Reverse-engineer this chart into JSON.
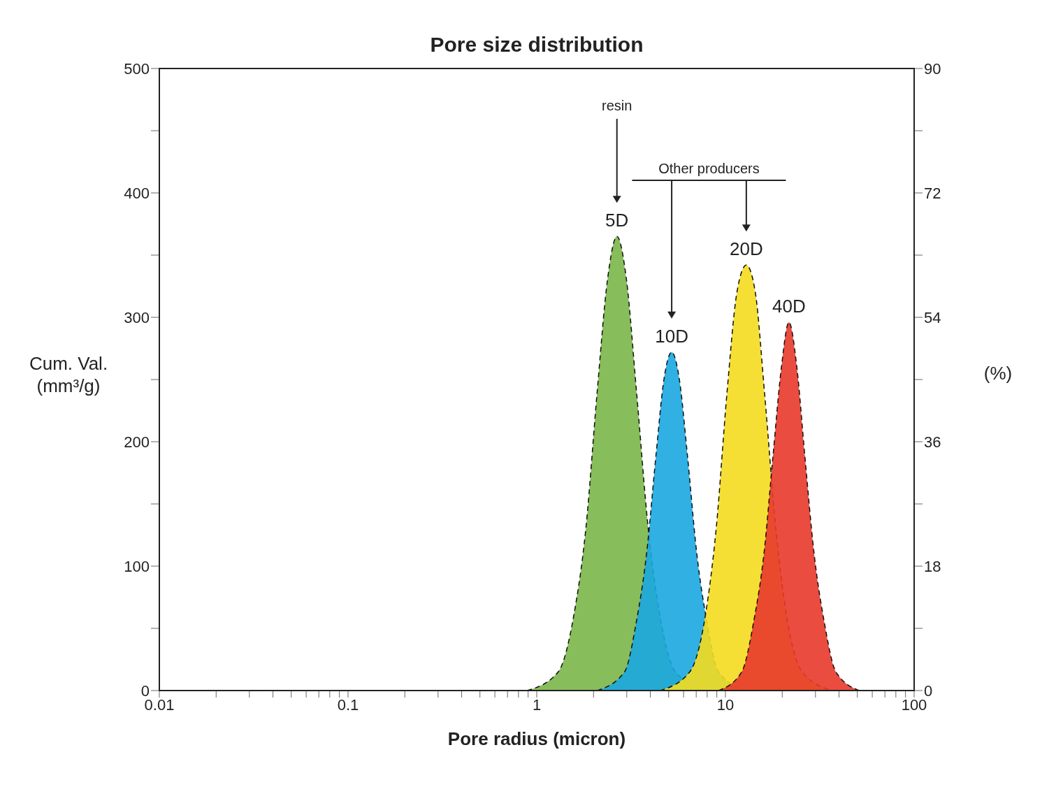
{
  "chart_data": {
    "type": "area",
    "title": "Pore size distribution",
    "xlabel": "Pore radius (micron)",
    "ylabel": "Cum. Val. (mm³/g)",
    "y2label": "(%)",
    "log": "x",
    "line_style": "dashed",
    "xlim": [
      0.01,
      100
    ],
    "xticks": [
      0.01,
      {
        "value": 0.02,
        "label": null
      },
      {
        "value": 0.03,
        "label": null
      },
      {
        "value": 0.04,
        "label": null
      },
      {
        "value": 0.05,
        "label": null
      },
      {
        "value": 0.06,
        "label": null
      },
      {
        "value": 0.07,
        "label": null
      },
      {
        "value": 0.08,
        "label": null
      },
      {
        "value": 0.09,
        "label": null
      },
      0.1,
      {
        "value": 0.2,
        "label": null
      },
      {
        "value": 0.3,
        "label": null
      },
      {
        "value": 0.4,
        "label": null
      },
      {
        "value": 0.5,
        "label": null
      },
      {
        "value": 0.6,
        "label": null
      },
      {
        "value": 0.7,
        "label": null
      },
      {
        "value": 0.8,
        "label": null
      },
      {
        "value": 0.9,
        "label": null
      },
      1,
      {
        "value": 2,
        "label": null
      },
      {
        "value": 3,
        "label": null
      },
      {
        "value": 4,
        "label": null
      },
      {
        "value": 5,
        "label": null
      },
      {
        "value": 6,
        "label": null
      },
      {
        "value": 7,
        "label": null
      },
      {
        "value": 8,
        "label": null
      },
      {
        "value": 9,
        "label": null
      },
      10,
      {
        "value": 20,
        "label": null
      },
      {
        "value": 30,
        "label": null
      },
      {
        "value": 40,
        "label": null
      },
      {
        "value": 50,
        "label": null
      },
      {
        "value": 60,
        "label": null
      },
      {
        "value": 70,
        "label": null
      },
      {
        "value": 80,
        "label": null
      },
      {
        "value": 90,
        "label": null
      },
      100
    ],
    "ylim": [
      0,
      500
    ],
    "yticks": [
      0,
      {
        "value": 50,
        "label": null
      },
      100,
      {
        "value": 150,
        "label": null
      },
      200,
      {
        "value": 250,
        "label": null
      },
      300,
      {
        "value": 350,
        "label": null
      },
      400,
      {
        "value": 450,
        "label": null
      },
      500
    ],
    "y2lim": [
      0,
      90
    ],
    "y2ticks": [
      0,
      {
        "value": 9,
        "label": null
      },
      18,
      {
        "value": 27,
        "label": null
      },
      36,
      {
        "value": 45,
        "label": null
      },
      54,
      {
        "value": 63,
        "label": null
      },
      72,
      {
        "value": 81,
        "label": null
      },
      90
    ],
    "series": [
      {
        "name": "5D",
        "color": "#7ab648",
        "x": [
          0.89,
          1.3,
          1.57,
          1.82,
          2.09,
          2.37,
          2.66,
          2.99,
          3.38,
          3.9,
          4.5,
          5.44,
          7.98
        ],
        "values": [
          0,
          15,
          60,
          130,
          240,
          330,
          365,
          330,
          240,
          130,
          60,
          15,
          0
        ]
      },
      {
        "name": "10D",
        "color": "#1aa7e0",
        "x": [
          2.09,
          2.92,
          3.37,
          3.82,
          4.29,
          4.72,
          5.19,
          5.7,
          6.28,
          7.05,
          7.98,
          9.2,
          12.9
        ],
        "values": [
          0,
          15,
          55,
          110,
          190,
          250,
          272,
          250,
          190,
          110,
          55,
          15,
          0
        ]
      },
      {
        "name": "20D",
        "color": "#f5dc1e",
        "x": [
          4.5,
          6.47,
          7.82,
          8.93,
          10.2,
          11.5,
          12.9,
          14.4,
          16.1,
          18.5,
          21.1,
          25.5,
          36.7
        ],
        "values": [
          0,
          15,
          60,
          130,
          240,
          320,
          342,
          320,
          240,
          130,
          60,
          15,
          0
        ]
      },
      {
        "name": "40D",
        "color": "#e8392b",
        "x": [
          9.2,
          12.2,
          14.1,
          16.0,
          17.9,
          19.8,
          21.7,
          23.9,
          26.3,
          29.5,
          33.4,
          38.5,
          51.3
        ],
        "values": [
          0,
          15,
          55,
          110,
          190,
          260,
          296,
          260,
          190,
          110,
          55,
          15,
          0
        ]
      }
    ],
    "annotations": [
      "resin",
      "Other producers"
    ]
  }
}
